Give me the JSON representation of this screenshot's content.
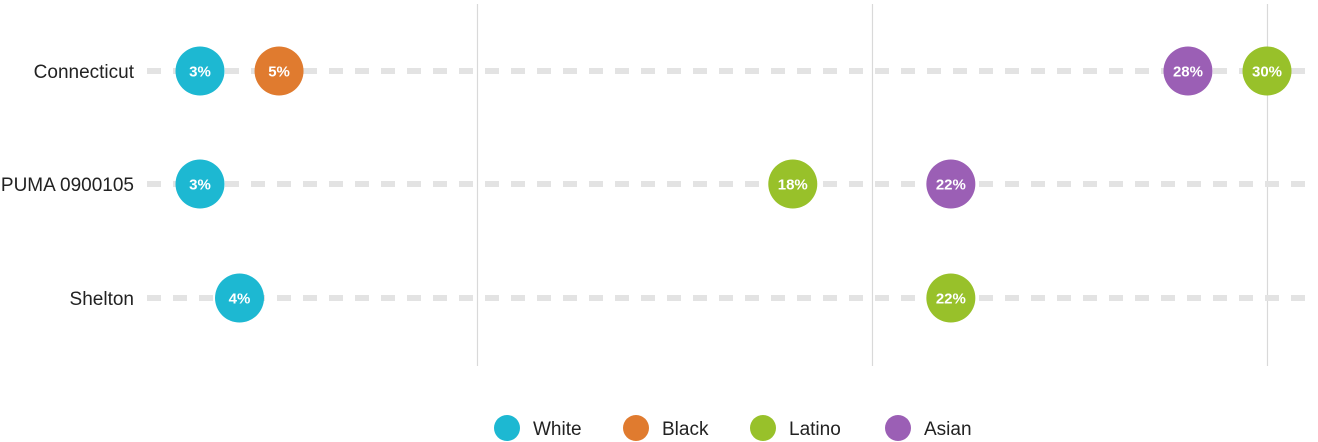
{
  "chart_data": {
    "type": "scatter",
    "title": "",
    "xlabel": "",
    "ylabel": "",
    "xlim": [
      0,
      0.3125
    ],
    "grid": true,
    "legend_position": "bottom",
    "categories": [
      "Connecticut",
      "PUMA 0900105",
      "Shelton"
    ],
    "series": [
      {
        "name": "White",
        "color": "#1db8d2",
        "values": [
          {
            "category": "Connecticut",
            "value": 0.03,
            "label": "3%"
          },
          {
            "category": "PUMA 0900105",
            "value": 0.03,
            "label": "3%"
          },
          {
            "category": "Shelton",
            "value": 0.04,
            "label": "4%"
          }
        ]
      },
      {
        "name": "Black",
        "color": "#e07b2f",
        "values": [
          {
            "category": "Connecticut",
            "value": 0.05,
            "label": "5%"
          }
        ]
      },
      {
        "name": "Latino",
        "color": "#98c12a",
        "values": [
          {
            "category": "Connecticut",
            "value": 0.3,
            "label": "30%"
          },
          {
            "category": "PUMA 0900105",
            "value": 0.18,
            "label": "18%"
          },
          {
            "category": "Shelton",
            "value": 0.22,
            "label": "22%"
          }
        ]
      },
      {
        "name": "Asian",
        "color": "#9b5fb5",
        "values": [
          {
            "category": "Connecticut",
            "value": 0.28,
            "label": "28%"
          },
          {
            "category": "PUMA 0900105",
            "value": 0.22,
            "label": "22%"
          }
        ]
      }
    ]
  }
}
